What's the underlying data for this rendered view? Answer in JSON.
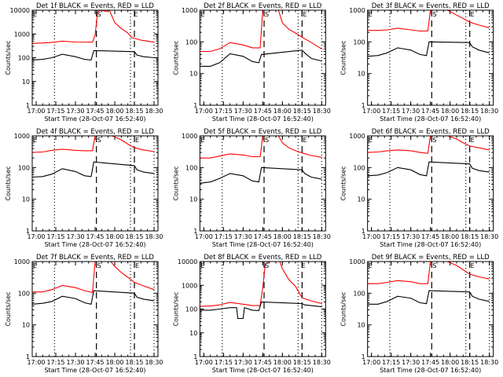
{
  "figure": {
    "common_xlabel": "Start Time (28-Oct-07 16:52:40)",
    "ylabel": "Counts/sec",
    "legend_note": "BLACK = Events, RED = LLD",
    "colors": {
      "events": "#000000",
      "lld": "#ff0000",
      "background": "#ffffff"
    }
  },
  "chart_data": [
    {
      "type": "line",
      "title": "Det 1f BLACK = Events, RED = LLD",
      "xlabel": "Start Time (28-Oct-07 16:52:40)",
      "ylabel": "Counts/sec",
      "yscale": "log",
      "ylim": [
        1,
        10000
      ],
      "yticks": [
        "1",
        "10",
        "100",
        "1000",
        "10000"
      ],
      "xticks": [
        "17:00",
        "17:15",
        "17:30",
        "17:45",
        "18:00",
        "18:15",
        "18:30"
      ],
      "markers": {
        "S": "17:46",
        "E_start": "16:57",
        "E_end": "18:14"
      },
      "dotted_lines": [
        "17:14",
        "18:12",
        "18:30"
      ],
      "dashed_lines": [
        "17:46",
        "18:15"
      ],
      "series": [
        {
          "name": "LLD",
          "color": "#ff0000",
          "x": [
            "16:57",
            "17:10",
            "17:20",
            "17:30",
            "17:43",
            "17:45",
            "17:47",
            "17:50",
            "17:53",
            "17:56",
            "18:00",
            "18:05",
            "18:10",
            "18:13",
            "18:20",
            "18:30"
          ],
          "y": [
            400,
            430,
            500,
            460,
            450,
            900,
            9000,
            11000,
            9000,
            11000,
            3000,
            1700,
            1100,
            700,
            550,
            450
          ]
        },
        {
          "name": "Events",
          "color": "#000000",
          "x": [
            "16:57",
            "17:05",
            "17:12",
            "17:20",
            "17:30",
            "17:37",
            "17:42",
            "17:44",
            "18:15",
            "18:17",
            "18:22",
            "18:30"
          ],
          "y": [
            80,
            85,
            100,
            140,
            110,
            85,
            80,
            200,
            180,
            130,
            110,
            100
          ]
        }
      ]
    },
    {
      "type": "line",
      "title": "Det 2f BLACK = Events, RED = LLD",
      "xlabel": "Start Time (28-Oct-07 16:52:40)",
      "ylabel": "Counts/sec",
      "yscale": "log",
      "ylim": [
        1,
        1000
      ],
      "yticks": [
        "1",
        "10",
        "100",
        "1000"
      ],
      "xticks": [
        "17:00",
        "17:15",
        "17:30",
        "17:45",
        "18:00",
        "18:15",
        "18:30"
      ],
      "markers": {
        "S": "17:46",
        "E_start": "16:57",
        "E_end": "18:15"
      },
      "dotted_lines": [
        "17:14",
        "18:12",
        "18:30"
      ],
      "dashed_lines": [
        "17:46",
        "18:15"
      ],
      "series": [
        {
          "name": "LLD",
          "color": "#ff0000",
          "x": [
            "16:57",
            "17:05",
            "17:12",
            "17:20",
            "17:30",
            "17:37",
            "17:43",
            "17:45",
            "17:57",
            "18:00",
            "18:05",
            "18:10",
            "18:15",
            "18:22",
            "18:30"
          ],
          "y": [
            50,
            50,
            60,
            95,
            80,
            65,
            65,
            1000,
            1000,
            400,
            250,
            190,
            140,
            95,
            60
          ]
        },
        {
          "name": "Events",
          "color": "#000000",
          "x": [
            "16:57",
            "17:05",
            "17:12",
            "17:20",
            "17:30",
            "17:37",
            "17:42",
            "17:44",
            "18:15",
            "18:17",
            "18:22",
            "18:30"
          ],
          "y": [
            17,
            17,
            22,
            42,
            35,
            24,
            22,
            40,
            55,
            45,
            30,
            25
          ]
        }
      ]
    },
    {
      "type": "line",
      "title": "Det 3f BLACK = Events, RED = LLD",
      "xlabel": "Start Time (28-Oct-07 16:52:40)",
      "ylabel": "Counts/sec",
      "yscale": "log",
      "ylim": [
        1,
        1000
      ],
      "yticks": [
        "1",
        "10",
        "100",
        "1000"
      ],
      "xticks": [
        "17:00",
        "17:15",
        "17:30",
        "17:45",
        "18:00",
        "18:15",
        "18:30"
      ],
      "markers": {
        "S": "17:46",
        "E_start": "16:57",
        "E_end": "18:15"
      },
      "dotted_lines": [
        "17:14",
        "18:12",
        "18:30"
      ],
      "dashed_lines": [
        "17:46",
        "18:15"
      ],
      "series": [
        {
          "name": "LLD",
          "color": "#ff0000",
          "x": [
            "16:57",
            "17:05",
            "17:12",
            "17:20",
            "17:30",
            "17:37",
            "17:43",
            "17:45",
            "17:58",
            "18:05",
            "18:10",
            "18:15",
            "18:22",
            "18:30"
          ],
          "y": [
            230,
            230,
            240,
            270,
            240,
            220,
            220,
            1000,
            1000,
            700,
            550,
            420,
            340,
            280
          ]
        },
        {
          "name": "Events",
          "color": "#000000",
          "x": [
            "16:57",
            "17:05",
            "17:12",
            "17:20",
            "17:30",
            "17:37",
            "17:42",
            "17:44",
            "18:15",
            "18:17",
            "18:22",
            "18:30"
          ],
          "y": [
            35,
            37,
            45,
            65,
            55,
            40,
            37,
            100,
            95,
            70,
            55,
            45
          ]
        }
      ]
    },
    {
      "type": "line",
      "title": "Det 4f BLACK = Events, RED = LLD",
      "xlabel": "Start Time (28-Oct-07 16:52:40)",
      "ylabel": "Counts/sec",
      "yscale": "log",
      "ylim": [
        1,
        1000
      ],
      "yticks": [
        "1",
        "10",
        "100",
        "1000"
      ],
      "xticks": [
        "17:00",
        "17:15",
        "17:30",
        "17:45",
        "18:00",
        "18:15",
        "18:30"
      ],
      "markers": {
        "S": "17:46",
        "E_start": "16:57",
        "E_end": "18:15"
      },
      "dotted_lines": [
        "17:14",
        "18:12",
        "18:30"
      ],
      "dashed_lines": [
        "17:46",
        "18:15"
      ],
      "series": [
        {
          "name": "LLD",
          "color": "#ff0000",
          "x": [
            "16:57",
            "17:05",
            "17:12",
            "17:20",
            "17:30",
            "17:37",
            "17:43",
            "17:45",
            "17:58",
            "18:05",
            "18:10",
            "18:15",
            "18:22",
            "18:30"
          ],
          "y": [
            300,
            310,
            350,
            380,
            350,
            340,
            340,
            1000,
            1000,
            750,
            550,
            420,
            360,
            320
          ]
        },
        {
          "name": "Events",
          "color": "#000000",
          "x": [
            "16:57",
            "17:05",
            "17:12",
            "17:20",
            "17:30",
            "17:37",
            "17:42",
            "17:44",
            "18:15",
            "18:17",
            "18:22",
            "18:30"
          ],
          "y": [
            50,
            52,
            62,
            92,
            75,
            55,
            52,
            150,
            115,
            85,
            72,
            65
          ]
        }
      ]
    },
    {
      "type": "line",
      "title": "Det 5f BLACK = Events, RED = LLD",
      "xlabel": "Start Time (28-Oct-07 16:52:40)",
      "ylabel": "Counts/sec",
      "yscale": "log",
      "ylim": [
        1,
        1000
      ],
      "yticks": [
        "1",
        "10",
        "100",
        "1000"
      ],
      "xticks": [
        "17:00",
        "17:15",
        "17:30",
        "17:45",
        "18:00",
        "18:15",
        "18:30"
      ],
      "markers": {
        "S": "17:46",
        "E_start": "16:57",
        "E_end": "18:15"
      },
      "dotted_lines": [
        "17:14",
        "18:12",
        "18:30"
      ],
      "dashed_lines": [
        "17:46",
        "18:15"
      ],
      "series": [
        {
          "name": "LLD",
          "color": "#ff0000",
          "x": [
            "16:57",
            "17:05",
            "17:12",
            "17:20",
            "17:30",
            "17:37",
            "17:43",
            "17:45",
            "17:57",
            "18:00",
            "18:05",
            "18:10",
            "18:15",
            "18:22",
            "18:30"
          ],
          "y": [
            200,
            200,
            230,
            270,
            250,
            220,
            220,
            1000,
            1000,
            600,
            420,
            340,
            290,
            240,
            210
          ]
        },
        {
          "name": "Events",
          "color": "#000000",
          "x": [
            "16:57",
            "17:05",
            "17:12",
            "17:20",
            "17:30",
            "17:37",
            "17:42",
            "17:44",
            "18:15",
            "18:17",
            "18:22",
            "18:30"
          ],
          "y": [
            32,
            35,
            45,
            65,
            55,
            38,
            35,
            100,
            85,
            65,
            50,
            43
          ]
        }
      ]
    },
    {
      "type": "line",
      "title": "Det 6f BLACK = Events, RED = LLD",
      "xlabel": "Start Time (28-Oct-07 16:52:40)",
      "ylabel": "Counts/sec",
      "yscale": "log",
      "ylim": [
        1,
        1000
      ],
      "yticks": [
        "1",
        "10",
        "100",
        "1000"
      ],
      "xticks": [
        "17:00",
        "17:15",
        "17:30",
        "17:45",
        "18:00",
        "18:15",
        "18:30"
      ],
      "markers": {
        "S": "17:46",
        "E_start": "16:57",
        "E_end": "18:15"
      },
      "dotted_lines": [
        "17:14",
        "18:12",
        "18:30"
      ],
      "dashed_lines": [
        "17:46",
        "18:15"
      ],
      "series": [
        {
          "name": "LLD",
          "color": "#ff0000",
          "x": [
            "16:57",
            "17:05",
            "17:12",
            "17:20",
            "17:30",
            "17:37",
            "17:43",
            "17:45",
            "17:58",
            "18:05",
            "18:10",
            "18:15",
            "18:22",
            "18:30"
          ],
          "y": [
            300,
            310,
            340,
            360,
            340,
            300,
            280,
            1000,
            1000,
            800,
            600,
            480,
            420,
            360
          ]
        },
        {
          "name": "Events",
          "color": "#000000",
          "x": [
            "16:57",
            "17:05",
            "17:12",
            "17:20",
            "17:30",
            "17:37",
            "17:42",
            "17:44",
            "18:15",
            "18:17",
            "18:22",
            "18:30"
          ],
          "y": [
            55,
            58,
            70,
            100,
            85,
            60,
            55,
            150,
            130,
            95,
            80,
            72
          ]
        }
      ]
    },
    {
      "type": "line",
      "title": "Det 7f BLACK = Events, RED = LLD",
      "xlabel": "Start Time (28-Oct-07 16:52:40)",
      "ylabel": "Counts/sec",
      "yscale": "log",
      "ylim": [
        1,
        1000
      ],
      "yticks": [
        "1",
        "10",
        "100",
        "1000"
      ],
      "xticks": [
        "17:00",
        "17:15",
        "17:30",
        "17:45",
        "18:00",
        "18:15",
        "18:30"
      ],
      "markers": {
        "S": "17:46",
        "E_start": "16:57",
        "E_end": "18:15"
      },
      "dotted_lines": [
        "17:14",
        "18:12",
        "18:30"
      ],
      "dashed_lines": [
        "17:46",
        "18:15"
      ],
      "series": [
        {
          "name": "LLD",
          "color": "#ff0000",
          "x": [
            "16:57",
            "17:05",
            "17:12",
            "17:20",
            "17:30",
            "17:37",
            "17:43",
            "17:45",
            "17:57",
            "18:00",
            "18:05",
            "18:10",
            "18:15",
            "18:22",
            "18:30"
          ],
          "y": [
            110,
            110,
            130,
            175,
            150,
            120,
            105,
            1000,
            1000,
            700,
            450,
            320,
            220,
            170,
            130
          ]
        },
        {
          "name": "Events",
          "color": "#000000",
          "x": [
            "16:57",
            "17:05",
            "17:12",
            "17:20",
            "17:30",
            "17:37",
            "17:42",
            "17:44",
            "18:15",
            "18:17",
            "18:22",
            "18:30"
          ],
          "y": [
            45,
            48,
            55,
            80,
            68,
            50,
            45,
            120,
            100,
            75,
            65,
            58
          ]
        }
      ]
    },
    {
      "type": "line",
      "title": "Det 8f BLACK = Events, RED = LLD",
      "xlabel": "Start Time (28-Oct-07 16:52:40)",
      "ylabel": "Counts/sec",
      "yscale": "log",
      "ylim": [
        1,
        10000
      ],
      "yticks": [
        "1",
        "10",
        "100",
        "1000",
        "10000"
      ],
      "xticks": [
        "17:00",
        "17:15",
        "17:30",
        "17:45",
        "18:00",
        "18:15",
        "18:30"
      ],
      "markers": {
        "S": "17:46",
        "E_start": "16:57",
        "E_end": "18:14"
      },
      "dotted_lines": [
        "17:14",
        "18:12",
        "18:30"
      ],
      "dashed_lines": [
        "17:46",
        "18:15"
      ],
      "series": [
        {
          "name": "LLD",
          "color": "#ff0000",
          "x": [
            "16:57",
            "17:05",
            "17:12",
            "17:20",
            "17:30",
            "17:37",
            "17:43",
            "17:45",
            "17:47",
            "17:50",
            "17:55",
            "17:58",
            "18:00",
            "18:05",
            "18:10",
            "18:15",
            "18:22",
            "18:30"
          ],
          "y": [
            130,
            135,
            150,
            190,
            160,
            140,
            140,
            800,
            8000,
            11000,
            10000,
            12000,
            5000,
            1700,
            900,
            300,
            220,
            170
          ]
        },
        {
          "name": "Events",
          "color": "#000000",
          "x": [
            "16:57",
            "17:05",
            "17:12",
            "17:20",
            "17:25",
            "17:26",
            "17:30",
            "17:31",
            "17:37",
            "17:42",
            "17:44",
            "18:15",
            "18:17",
            "18:22",
            "18:30"
          ],
          "y": [
            90,
            90,
            100,
            115,
            115,
            40,
            40,
            115,
            90,
            85,
            200,
            170,
            150,
            140,
            125
          ]
        }
      ]
    },
    {
      "type": "line",
      "title": "Det 9f BLACK = Events, RED = LLD",
      "xlabel": "Start Time (28-Oct-07 16:52:40)",
      "ylabel": "Counts/sec",
      "yscale": "log",
      "ylim": [
        1,
        1000
      ],
      "yticks": [
        "1",
        "10",
        "100",
        "1000"
      ],
      "xticks": [
        "17:00",
        "17:15",
        "17:30",
        "17:45",
        "18:00",
        "18:15",
        "18:30"
      ],
      "markers": {
        "S": "17:46",
        "E_start": "16:57",
        "E_end": "18:15"
      },
      "dotted_lines": [
        "17:14",
        "18:12",
        "18:30"
      ],
      "dashed_lines": [
        "17:46",
        "18:15"
      ],
      "series": [
        {
          "name": "LLD",
          "color": "#ff0000",
          "x": [
            "16:57",
            "17:05",
            "17:12",
            "17:20",
            "17:30",
            "17:37",
            "17:43",
            "17:45",
            "17:58",
            "18:05",
            "18:10",
            "18:15",
            "18:22",
            "18:30"
          ],
          "y": [
            200,
            200,
            220,
            250,
            230,
            200,
            200,
            1000,
            1000,
            750,
            550,
            400,
            330,
            280
          ]
        },
        {
          "name": "Events",
          "color": "#000000",
          "x": [
            "16:57",
            "17:05",
            "17:12",
            "17:20",
            "17:30",
            "17:37",
            "17:42",
            "17:44",
            "18:15",
            "18:17",
            "18:22",
            "18:30"
          ],
          "y": [
            45,
            45,
            55,
            80,
            70,
            50,
            47,
            120,
            110,
            80,
            65,
            55
          ]
        }
      ]
    }
  ]
}
